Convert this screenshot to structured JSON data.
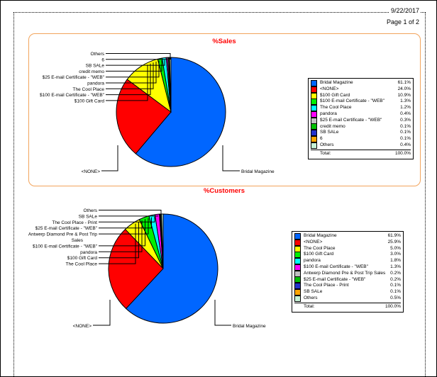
{
  "header": {
    "date": "9/22/2017",
    "page_label": "Page 1 of 2"
  },
  "chart_data": [
    {
      "type": "pie",
      "title": "%Sales",
      "title_color": "#FF0000",
      "legend_position": "right",
      "categories": [
        "Bridal Magazine",
        "<NONE>",
        "$100 Gift Card",
        "$100 E-mail Certificate - \"WEB\"",
        "The Cool Place",
        "pandora",
        "$25 E-mail Certificate - \"WEB\"",
        "credit memo",
        "SB SALe",
        "6",
        "Others"
      ],
      "values": [
        61.1,
        24.0,
        10.9,
        1.3,
        1.2,
        0.4,
        0.3,
        0.1,
        0.1,
        0.1,
        0.4
      ],
      "percent_labels": [
        "61.1%",
        "24.0%",
        "10.9%",
        "1.3%",
        "1.2%",
        "0.4%",
        "0.3%",
        "0.1%",
        "0.1%",
        "0.1%",
        "0.4%"
      ],
      "colors": [
        "#0066FF",
        "#FF0000",
        "#FFFF00",
        "#00F000",
        "#00FFFF",
        "#FF00FF",
        "#C0C0C0",
        "#00C000",
        "#2233CC",
        "#FFA500",
        "#C6F3D6"
      ],
      "total_label": "Total:",
      "total_value": "100.0%"
    },
    {
      "type": "pie",
      "title": "%Customers",
      "title_color": "#FF0000",
      "legend_position": "right",
      "categories": [
        "Bridal Magazine",
        "<NONE>",
        "The Cool Place",
        "$100 Gift Card",
        "pandora",
        "$100 E-mail Certificate - \"WEB\"",
        "Antwerp Diamond Pre & Post Trip Sales",
        "$25 E-mail Certificate - \"WEB\"",
        "The Cool Place - Print",
        "SB SALe",
        "Others"
      ],
      "values": [
        61.9,
        25.9,
        5.0,
        3.0,
        1.8,
        1.3,
        0.2,
        0.2,
        0.1,
        0.1,
        0.5
      ],
      "percent_labels": [
        "61.9%",
        "25.9%",
        "5.0%",
        "3.0%",
        "1.8%",
        "1.3%",
        "0.2%",
        "0.2%",
        "0.1%",
        "0.1%",
        "0.5%"
      ],
      "colors": [
        "#0066FF",
        "#FF0000",
        "#FFFF00",
        "#00F000",
        "#00FFFF",
        "#FF00FF",
        "#C0C0C0",
        "#00C000",
        "#2233CC",
        "#FFA500",
        "#C6F3D6"
      ],
      "total_label": "Total:",
      "total_value": "100.0%"
    }
  ]
}
